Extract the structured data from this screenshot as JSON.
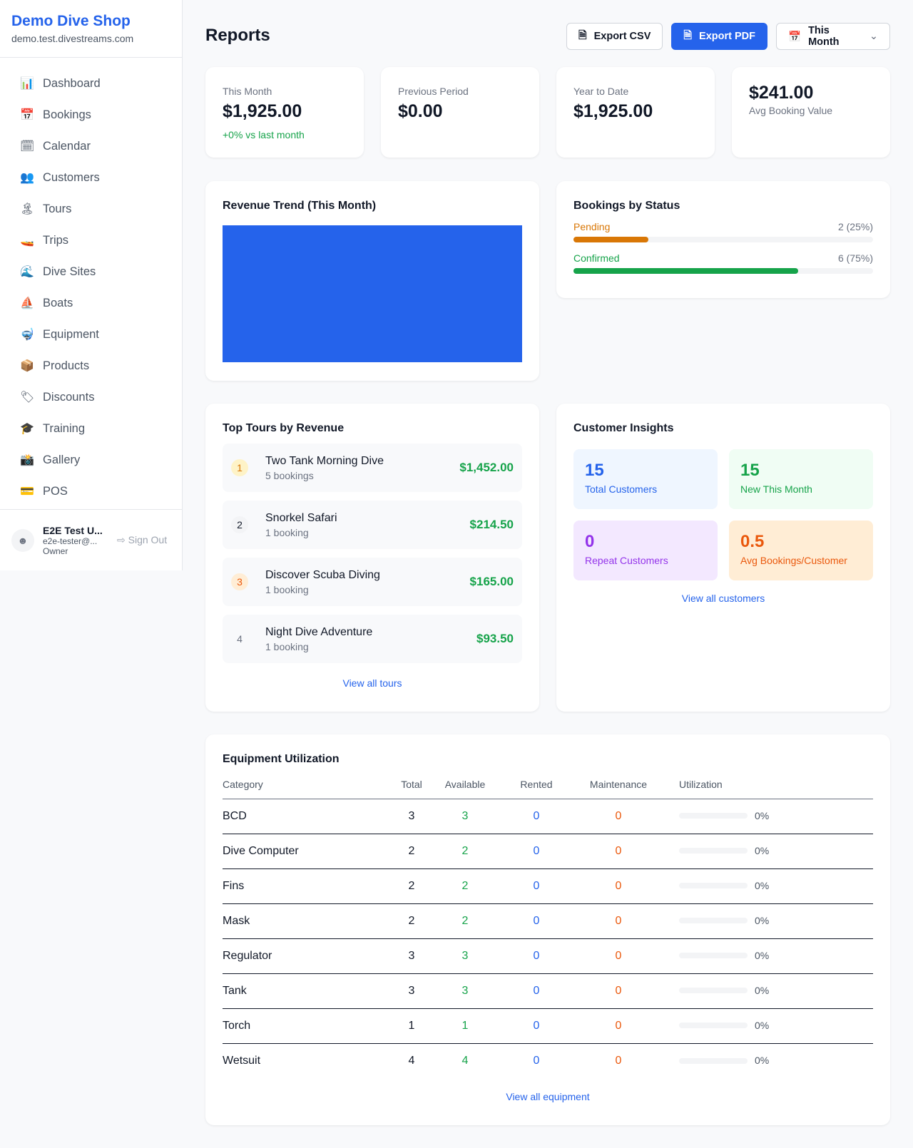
{
  "sidebar": {
    "shop_name": "Demo Dive Shop",
    "domain": "demo.test.divestreams.com",
    "items": [
      {
        "icon": "📊",
        "label": "Dashboard"
      },
      {
        "icon": "📅",
        "label": "Bookings"
      },
      {
        "icon": "🗓",
        "label": "Calendar"
      },
      {
        "icon": "👥",
        "label": "Customers"
      },
      {
        "icon": "🏝",
        "label": "Tours"
      },
      {
        "icon": "🚤",
        "label": "Trips"
      },
      {
        "icon": "🌊",
        "label": "Dive Sites"
      },
      {
        "icon": "⛵",
        "label": "Boats"
      },
      {
        "icon": "🤿",
        "label": "Equipment"
      },
      {
        "icon": "📦",
        "label": "Products"
      },
      {
        "icon": "🏷",
        "label": "Discounts"
      },
      {
        "icon": "🎓",
        "label": "Training"
      },
      {
        "icon": "📸",
        "label": "Gallery"
      },
      {
        "icon": "💳",
        "label": "POS"
      }
    ],
    "user": {
      "name": "E2E Test U...",
      "email": "e2e-tester@...",
      "role": "Owner",
      "sign_out": "Sign Out"
    }
  },
  "header": {
    "title": "Reports",
    "export_csv": "Export CSV",
    "export_pdf": "Export PDF",
    "period": "This Month"
  },
  "stats": [
    {
      "label": "This Month",
      "value": "$1,925.00",
      "sub": "+0% vs last month"
    },
    {
      "label": "Previous Period",
      "value": "$0.00"
    },
    {
      "label": "Year to Date",
      "value": "$1,925.00"
    },
    {
      "value": "$241.00",
      "label": "Avg Booking Value"
    }
  ],
  "revenue": {
    "title": "Revenue Trend (This Month)",
    "color": "#2563eb"
  },
  "status": {
    "title": "Bookings by Status",
    "items": [
      {
        "label": "Pending",
        "value": "2 (25%)",
        "percent": 25,
        "color": "#d97706"
      },
      {
        "label": "Confirmed",
        "value": "6 (75%)",
        "percent": 75,
        "color": "#16a34a"
      }
    ]
  },
  "tours": {
    "title": "Top Tours by Revenue",
    "link": "View all tours",
    "items": [
      {
        "rank": "1",
        "name": "Two Tank Morning Dive",
        "bookings": "5 bookings",
        "revenue": "$1,452.00"
      },
      {
        "rank": "2",
        "name": "Snorkel Safari",
        "bookings": "1 booking",
        "revenue": "$214.50"
      },
      {
        "rank": "3",
        "name": "Discover Scuba Diving",
        "bookings": "1 booking",
        "revenue": "$165.00"
      },
      {
        "rank": "4",
        "name": "Night Dive Adventure",
        "bookings": "1 booking",
        "revenue": "$93.50"
      }
    ]
  },
  "insights": {
    "title": "Customer Insights",
    "link": "View all customers",
    "items": [
      {
        "value": "15",
        "label": "Total Customers"
      },
      {
        "value": "15",
        "label": "New This Month"
      },
      {
        "value": "0",
        "label": "Repeat Customers"
      },
      {
        "value": "0.5",
        "label": "Avg Bookings/Customer"
      }
    ]
  },
  "equipment": {
    "title": "Equipment Utilization",
    "link": "View all equipment",
    "columns": [
      "Category",
      "Total",
      "Available",
      "Rented",
      "Maintenance",
      "Utilization"
    ],
    "rows": [
      [
        "BCD",
        "3",
        "3",
        "0",
        "0",
        "0%"
      ],
      [
        "Dive Computer",
        "2",
        "2",
        "0",
        "0",
        "0%"
      ],
      [
        "Fins",
        "2",
        "2",
        "0",
        "0",
        "0%"
      ],
      [
        "Mask",
        "2",
        "2",
        "0",
        "0",
        "0%"
      ],
      [
        "Regulator",
        "3",
        "3",
        "0",
        "0",
        "0%"
      ],
      [
        "Tank",
        "3",
        "3",
        "0",
        "0",
        "0%"
      ],
      [
        "Torch",
        "1",
        "1",
        "0",
        "0",
        "0%"
      ],
      [
        "Wetsuit",
        "4",
        "4",
        "0",
        "0",
        "0%"
      ]
    ]
  }
}
